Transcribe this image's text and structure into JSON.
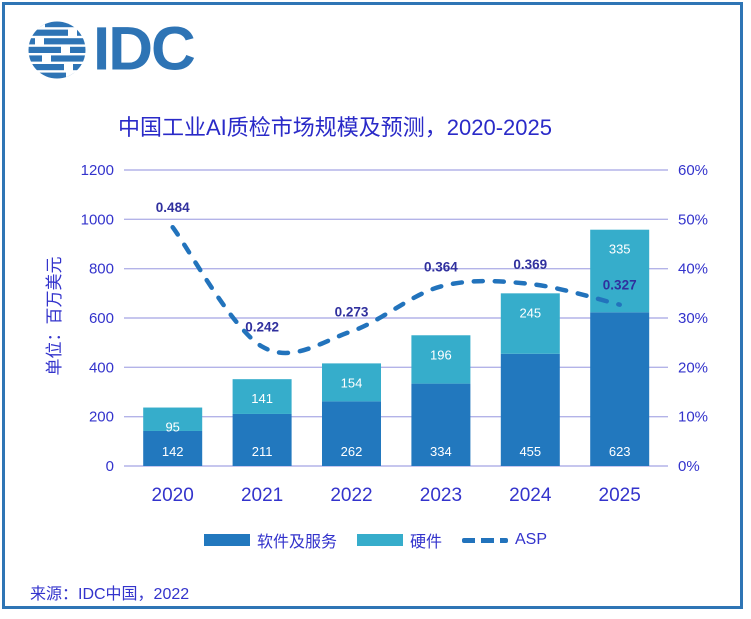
{
  "logo": {
    "text": "IDC"
  },
  "source": {
    "text": "来源：IDC中国，2022"
  },
  "colors": {
    "border": "#2E75B5",
    "logo": "#2E74B5",
    "background": "#FFFFFF",
    "title": "#2A2AC8",
    "axis_text": "#3333CC",
    "gridline": "#B3B3E8",
    "software_bar": "#2278BE",
    "hardware_bar": "#36ADCB",
    "asp_line": "#2273BC",
    "asp_label": "#30309E",
    "bar_label": "#FFFFFF"
  },
  "chart_data": {
    "type": "stacked-bar+line",
    "title": "中国工业AI质检市场规模及预测，2020-2025",
    "categories": [
      "2020",
      "2021",
      "2022",
      "2023",
      "2024",
      "2025"
    ],
    "series": [
      {
        "name": "软件及服务",
        "chart_type": "bar",
        "stacked": true,
        "axis": "left",
        "color": "#2278BE",
        "values": [
          142,
          211,
          262,
          334,
          455,
          623
        ]
      },
      {
        "name": "硬件",
        "chart_type": "bar",
        "stacked": true,
        "axis": "left",
        "color": "#36ADCB",
        "values": [
          95,
          141,
          154,
          196,
          245,
          335
        ]
      },
      {
        "name": "ASP",
        "chart_type": "line",
        "line_style": "dashed",
        "axis": "right",
        "color": "#2273BC",
        "values": [
          0.484,
          0.242,
          0.273,
          0.364,
          0.369,
          0.327
        ]
      }
    ],
    "left_axis": {
      "label": "单位：百万美元",
      "ticks": [
        0,
        200,
        400,
        600,
        800,
        1000,
        1200
      ],
      "range": [
        0,
        1200
      ]
    },
    "right_axis": {
      "ticks": [
        "0%",
        "10%",
        "20%",
        "30%",
        "40%",
        "50%",
        "60%"
      ],
      "range": [
        0,
        0.6
      ]
    },
    "grid": true,
    "legend_position": "bottom"
  }
}
